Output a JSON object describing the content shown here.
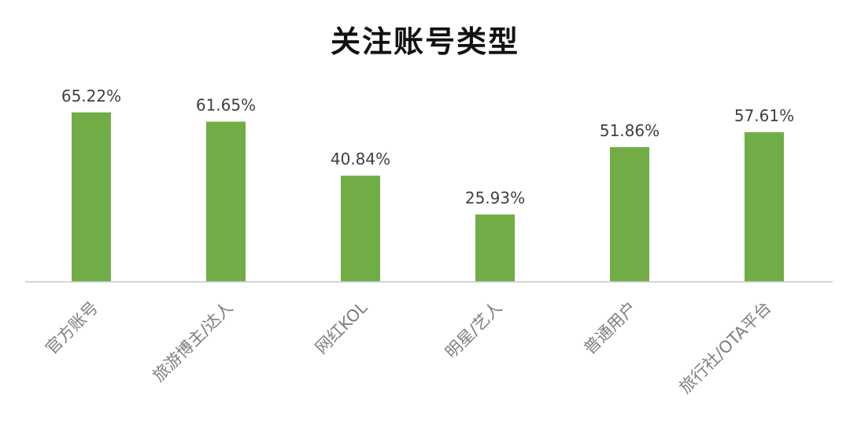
{
  "chart_data": {
    "type": "bar",
    "title": "关注账号类型",
    "xlabel": "",
    "ylabel": "",
    "categories": [
      "官方账号",
      "旅游博主/达人",
      "网红KOL",
      "明星/艺人",
      "普通用户",
      "旅行社/OTA平台"
    ],
    "values": [
      65.22,
      61.65,
      40.84,
      25.93,
      51.86,
      57.61
    ],
    "value_labels": [
      "65.22%",
      "61.65%",
      "40.84%",
      "25.93%",
      "51.86%",
      "57.61%"
    ],
    "ylim": [
      0,
      70
    ],
    "grid": false,
    "legend": "none",
    "bar_color": "#70ad47"
  }
}
